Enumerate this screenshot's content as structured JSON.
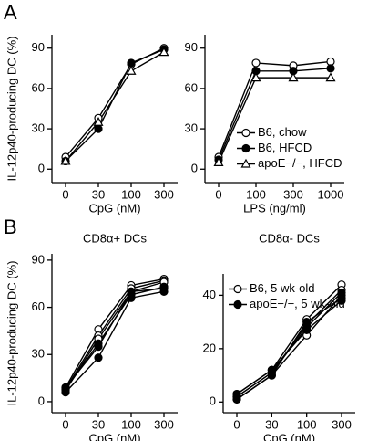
{
  "panel_labels": [
    "A",
    "B"
  ],
  "chart_data": [
    {
      "type": "line",
      "ylabel": "IL-12p40-producing DC (%)",
      "xlabel": "CpG (nM)",
      "categories": [
        "0",
        "30",
        "100",
        "300"
      ],
      "ylim": [
        -10,
        100
      ],
      "yticks": [
        0,
        30,
        60,
        90
      ],
      "series": [
        {
          "color": "#000000",
          "marker": "circle-open",
          "values": [
            9,
            38,
            78,
            90
          ]
        },
        {
          "color": "#000000",
          "marker": "circle-filled",
          "values": [
            6,
            30,
            79,
            89
          ]
        },
        {
          "color": "#000000",
          "marker": "triangle-open",
          "values": [
            6,
            35,
            73,
            87
          ]
        }
      ]
    },
    {
      "type": "line",
      "xlabel": "LPS (ng/ml)",
      "categories": [
        "0",
        "100",
        "300",
        "1000"
      ],
      "ylim": [
        -10,
        100
      ],
      "yticks": [
        0,
        30,
        60,
        90
      ],
      "legend": "lower right",
      "series": [
        {
          "name": "B6, chow",
          "color": "#000000",
          "marker": "circle-open",
          "values": [
            9,
            79,
            77,
            80
          ]
        },
        {
          "name": "B6, HFCD",
          "color": "#000000",
          "marker": "circle-filled",
          "values": [
            7,
            73,
            73,
            75
          ]
        },
        {
          "name": "apoE−/−, HFCD",
          "color": "#000000",
          "marker": "triangle-open",
          "values": [
            5,
            68,
            68,
            68
          ]
        }
      ]
    },
    {
      "type": "line",
      "title": "CD8α+ DCs",
      "ylabel": "IL-12p40-producing DC (%)",
      "xlabel": "CpG (nM)",
      "categories": [
        "0",
        "30",
        "100",
        "300"
      ],
      "ylim": [
        -7,
        94
      ],
      "yticks": [
        0,
        30,
        60,
        90
      ],
      "series": [
        {
          "color": "#000000",
          "marker": "circle-open",
          "values": [
            9,
            46,
            74,
            78
          ]
        },
        {
          "color": "#000000",
          "marker": "circle-open",
          "values": [
            8,
            42,
            72,
            77
          ]
        },
        {
          "color": "#000000",
          "marker": "circle-open",
          "values": [
            7,
            40,
            70,
            76
          ]
        },
        {
          "color": "#000000",
          "marker": "circle-filled",
          "values": [
            8,
            37,
            68,
            73
          ]
        },
        {
          "color": "#000000",
          "marker": "circle-filled",
          "values": [
            6,
            28,
            66,
            70
          ]
        },
        {
          "color": "#000000",
          "marker": "circle-filled",
          "values": [
            9,
            35,
            70,
            72
          ]
        }
      ]
    },
    {
      "type": "line",
      "title": "CD8α- DCs",
      "xlabel": "CpG (nM)",
      "categories": [
        "0",
        "30",
        "100",
        "300"
      ],
      "ylim": [
        -4,
        48
      ],
      "yticks": [
        0,
        20,
        40
      ],
      "legend": "upper left",
      "series": [
        {
          "name": "B6, 5 wk-old",
          "color": "#000000",
          "marker": "circle-open",
          "values": [
            3,
            12,
            31,
            44
          ]
        },
        {
          "color": "#000000",
          "marker": "circle-open",
          "values": [
            2,
            11,
            29,
            42
          ]
        },
        {
          "color": "#000000",
          "marker": "circle-open",
          "values": [
            1,
            10,
            25,
            40
          ]
        },
        {
          "name": "apoE−/−, 5 wk-old",
          "color": "#000000",
          "marker": "circle-filled",
          "values": [
            2,
            11,
            28,
            41
          ]
        },
        {
          "color": "#000000",
          "marker": "circle-filled",
          "values": [
            3,
            12,
            27,
            38
          ]
        },
        {
          "color": "#000000",
          "marker": "circle-filled",
          "values": [
            1,
            10,
            30,
            39
          ]
        }
      ]
    }
  ]
}
